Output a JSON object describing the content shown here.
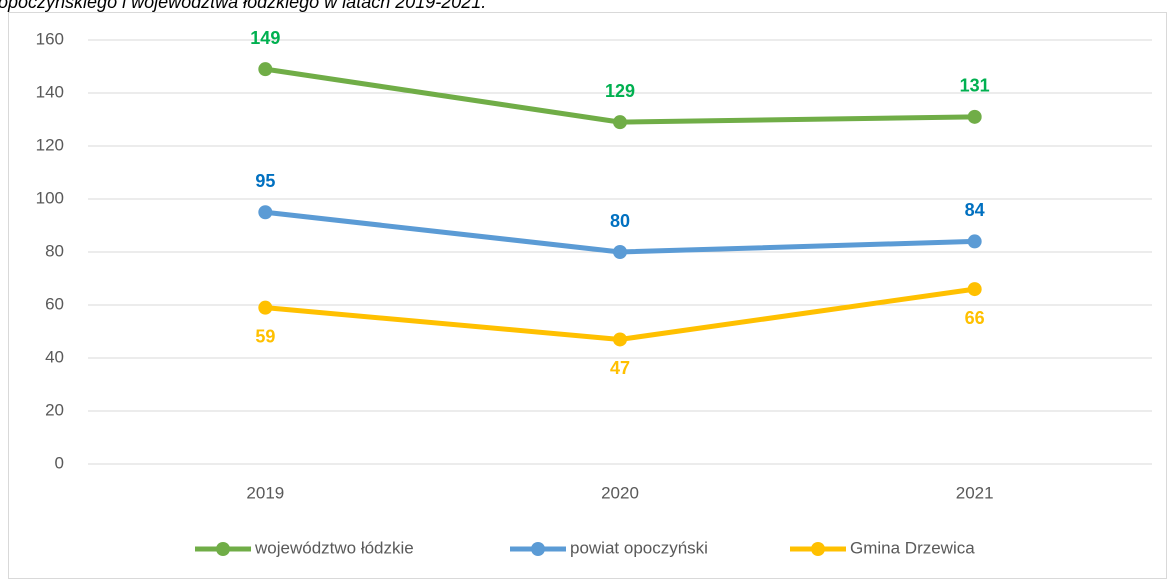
{
  "chart_data": {
    "type": "line",
    "title": "opoczyńskiego i województwa łódzkiego w latach 2019-2021.",
    "categories": [
      "2019",
      "2020",
      "2021"
    ],
    "series": [
      {
        "name": "województwo łódzkie",
        "color": "#70ad47",
        "label_color": "#00b050",
        "label_position": "above",
        "values": [
          149,
          129,
          131
        ]
      },
      {
        "name": "powiat opoczyński",
        "color": "#5b9bd5",
        "label_color": "#0070c0",
        "label_position": "above",
        "values": [
          95,
          80,
          84
        ]
      },
      {
        "name": "Gmina Drzewica",
        "color": "#ffc000",
        "label_color": "#ffc000",
        "label_position": "below",
        "values": [
          59,
          47,
          66
        ]
      }
    ],
    "ylim": [
      0,
      160
    ],
    "yticks": [
      0,
      20,
      40,
      60,
      80,
      100,
      120,
      140,
      160
    ],
    "grid": true,
    "legend": "bottom"
  }
}
